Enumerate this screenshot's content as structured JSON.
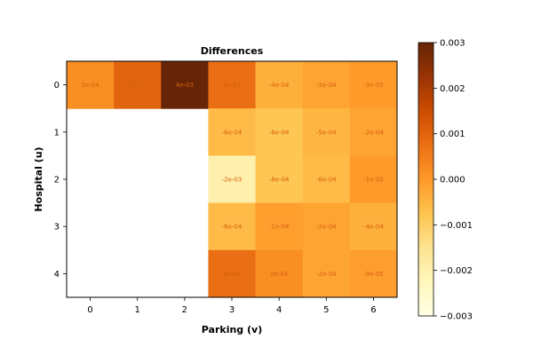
{
  "chart_data": {
    "type": "heatmap",
    "title": "Differences",
    "xlabel": "Parking (v)",
    "ylabel": "Hospital (u)",
    "x_categories": [
      "0",
      "1",
      "2",
      "3",
      "4",
      "5",
      "6"
    ],
    "y_categories": [
      "0",
      "1",
      "2",
      "3",
      "4"
    ],
    "values": [
      [
        0.0002,
        0.001,
        0.004,
        0.0008,
        -0.0004,
        -0.0002,
        -3e-05
      ],
      [
        null,
        null,
        null,
        -0.0006,
        -0.0008,
        -0.0005,
        -0.0002
      ],
      [
        null,
        null,
        null,
        -0.002,
        -0.0008,
        -0.0006,
        -1e-05
      ],
      [
        null,
        null,
        null,
        -0.0006,
        -0.0001,
        -0.0002,
        -0.0004
      ],
      [
        null,
        null,
        null,
        0.0008,
        0.0002,
        -0.0002,
        -9e-05
      ]
    ],
    "cell_labels": [
      [
        "2e-04",
        "1e-03",
        "4e-03",
        "8e-04",
        "-4e-04",
        "-2e-04",
        "-3e-05"
      ],
      [
        "",
        "",
        "",
        "-6e-04",
        "-8e-04",
        "-5e-04",
        "-2e-04"
      ],
      [
        "",
        "",
        "",
        "-2e-03",
        "-8e-04",
        "-6e-04",
        "-1e-05"
      ],
      [
        "",
        "",
        "",
        "-6e-04",
        "-1e-04",
        "-2e-04",
        "-4e-04"
      ],
      [
        "",
        "",
        "",
        "8e-04",
        "2e-04",
        "-2e-04",
        "-9e-05"
      ]
    ],
    "colorbar": {
      "range": [
        -0.003,
        0.003
      ],
      "ticks": [
        0.003,
        0.002,
        0.001,
        0.0,
        -0.001,
        -0.002,
        -0.003
      ],
      "tick_labels": [
        "0.003",
        "0.002",
        "0.001",
        "0.000",
        "−0.001",
        "−0.002",
        "−0.003"
      ],
      "colormap": [
        "#ffffe5",
        "#fff7bc",
        "#fee391",
        "#fec44f",
        "#fe9929",
        "#ec7014",
        "#cc4c02",
        "#993404",
        "#662506"
      ]
    }
  }
}
